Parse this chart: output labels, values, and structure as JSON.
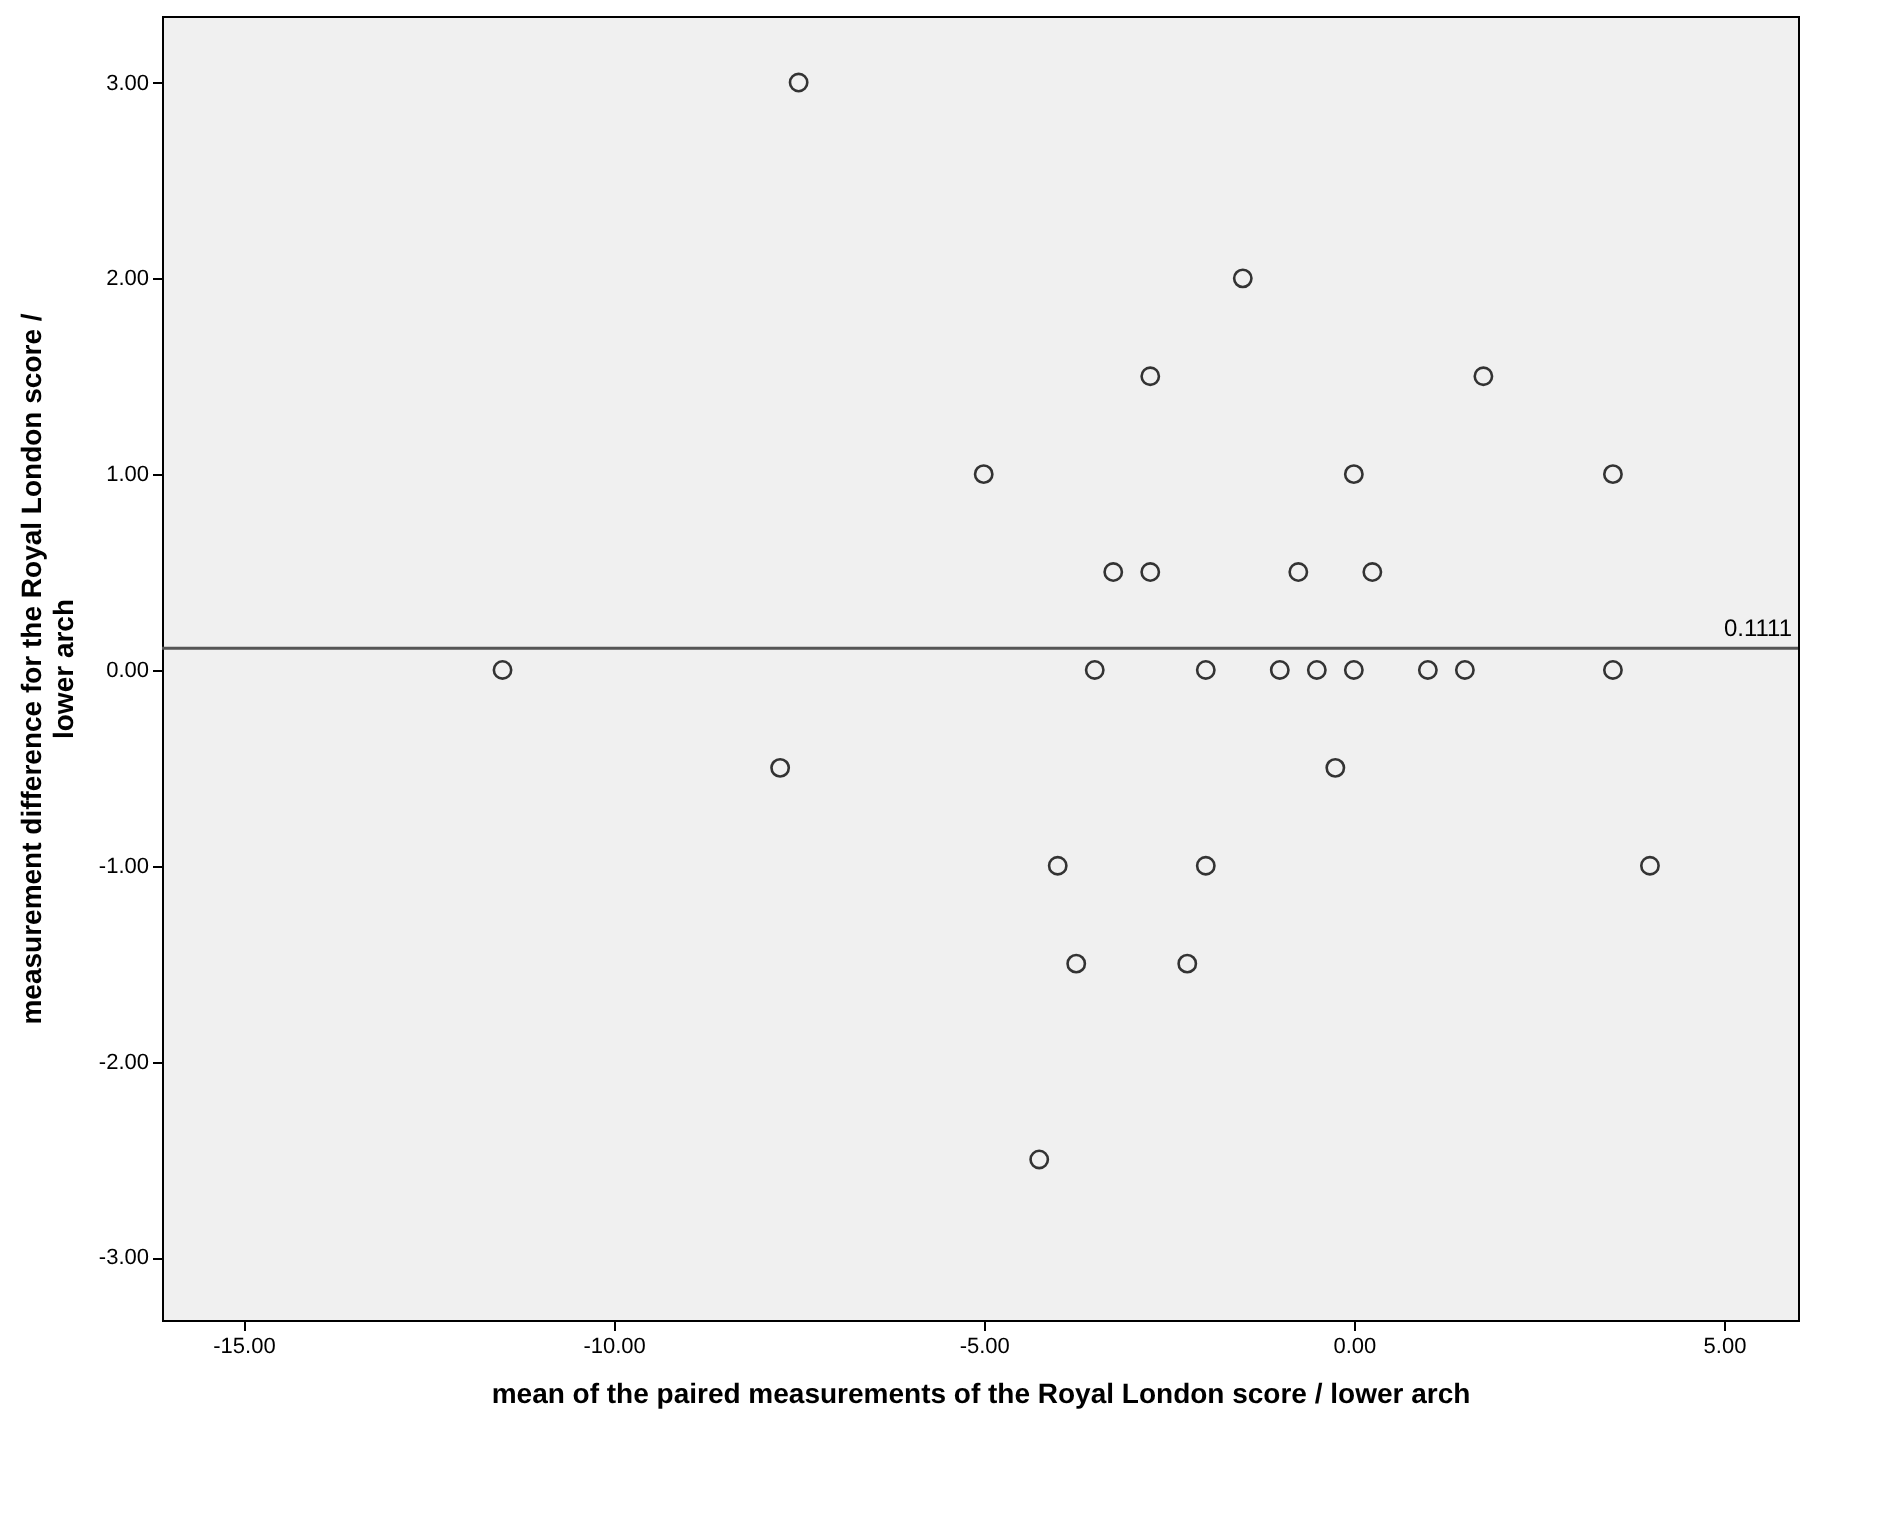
{
  "chart_data": {
    "type": "scatter",
    "xlabel": "mean of the paired measurements of the Royal London score / lower arch",
    "ylabel": "measurement difference for the Royal London score / lower arch",
    "x": [
      -7.5,
      -1.5,
      -2.75,
      1.75,
      -5,
      0,
      3.5,
      -3.25,
      -2.75,
      -0.75,
      0.25,
      -11.5,
      -3.5,
      -2,
      -1,
      -0.5,
      0,
      1,
      1.5,
      3.5,
      -7.75,
      -0.25,
      -4,
      -2,
      4,
      -3.75,
      -2.25,
      -4.25
    ],
    "series": [
      {
        "color": "#333333",
        "values": [
          3,
          2,
          1.5,
          1.5,
          1,
          1,
          1,
          0.5,
          0.5,
          0.5,
          0.5,
          0,
          0,
          0,
          0,
          0,
          0,
          0,
          0,
          0,
          -0.5,
          -0.5,
          -1,
          -1,
          -1,
          -1.5,
          -1.5,
          -2.5
        ]
      }
    ],
    "marker": "circle",
    "grid": false,
    "xlim": [
      -16.1,
      6
    ],
    "ylim": [
      -3.32,
      3.34
    ],
    "xticks": [
      {
        "value": -15,
        "label": "-15.00"
      },
      {
        "value": -10,
        "label": "-10.00"
      },
      {
        "value": -5,
        "label": "-5.00"
      },
      {
        "value": 0,
        "label": "0.00"
      },
      {
        "value": 5,
        "label": "5.00"
      }
    ],
    "yticks": [
      {
        "value": -3,
        "label": "-3.00"
      },
      {
        "value": -2,
        "label": "-2.00"
      },
      {
        "value": -1,
        "label": "-1.00"
      },
      {
        "value": 0,
        "label": "0.00"
      },
      {
        "value": 1,
        "label": "1.00"
      },
      {
        "value": 2,
        "label": "2.00"
      },
      {
        "value": 3,
        "label": "3.00"
      }
    ],
    "ref_lines": [
      {
        "axis": "y",
        "value": 0.1111,
        "label": "0.1111",
        "color": "#555555"
      }
    ]
  }
}
